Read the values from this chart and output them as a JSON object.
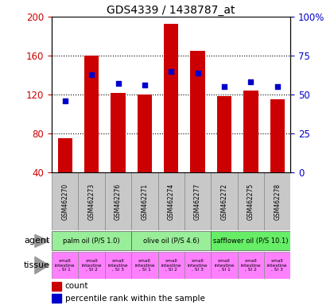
{
  "title": "GDS4339 / 1438787_at",
  "samples": [
    "GSM462270",
    "GSM462273",
    "GSM462276",
    "GSM462271",
    "GSM462274",
    "GSM462277",
    "GSM462272",
    "GSM462275",
    "GSM462278"
  ],
  "counts": [
    75,
    160,
    122,
    120,
    193,
    165,
    118,
    124,
    115
  ],
  "percentiles": [
    46,
    63,
    57,
    56,
    65,
    64,
    55,
    58,
    55
  ],
  "ylim_left": [
    40,
    200
  ],
  "ylim_right": [
    0,
    100
  ],
  "yticks_left": [
    40,
    80,
    120,
    160,
    200
  ],
  "ytick_labels_left": [
    "40",
    "80",
    "120",
    "160",
    "200"
  ],
  "yticks_right": [
    0,
    25,
    50,
    75,
    100
  ],
  "ytick_labels_right": [
    "0",
    "25",
    "50",
    "75",
    "100%"
  ],
  "agent_groups": [
    {
      "label": "palm oil (P/S 1.0)",
      "color": "#99EE99",
      "start": 0,
      "end": 3
    },
    {
      "label": "olive oil (P/S 4.6)",
      "color": "#99EE99",
      "start": 3,
      "end": 6
    },
    {
      "label": "safflower oil (P/S 10.1)",
      "color": "#66EE66",
      "start": 6,
      "end": 9
    }
  ],
  "tissue_sublabels": [
    ", SI 1",
    ", SI 2",
    ", SI 3",
    ", SI 1",
    ", SI 2",
    ", SI 3",
    ", SI 1",
    ", SI 2",
    ", SI 3"
  ],
  "tissue_color": "#FF80FF",
  "bar_color": "#CC0000",
  "dot_color": "#0000CC",
  "bar_width": 0.55,
  "background_color": "#FFFFFF",
  "agent_label": "agent",
  "tissue_label_row": "tissue",
  "gsm_bg": "#C8C8C8"
}
